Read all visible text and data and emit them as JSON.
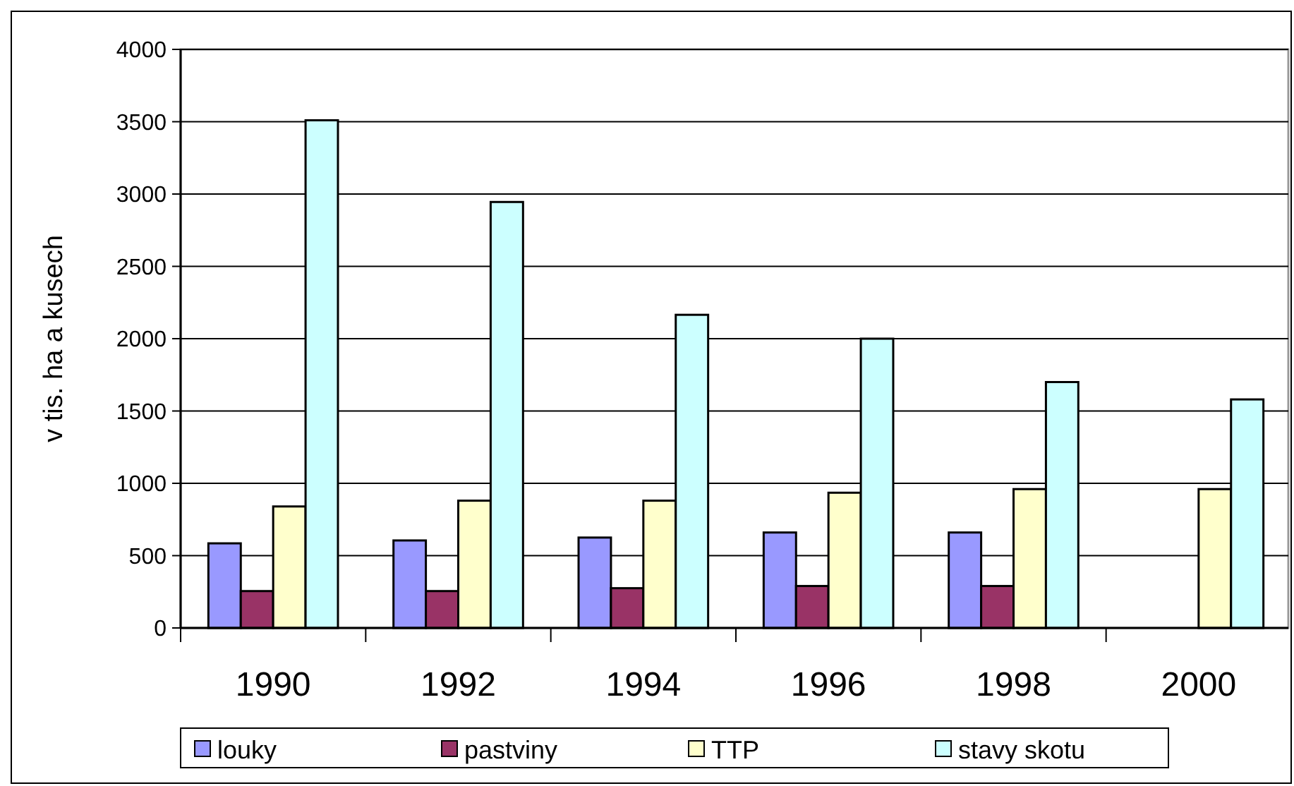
{
  "chart_data": {
    "type": "bar",
    "ylabel": "v tis. ha a kusech",
    "categories": [
      "1990",
      "1992",
      "1994",
      "1996",
      "1998",
      "2000"
    ],
    "series": [
      {
        "name": "louky",
        "color": "#9999ff",
        "values": [
          585,
          605,
          625,
          660,
          660,
          null
        ]
      },
      {
        "name": "pastviny",
        "color": "#993366",
        "values": [
          255,
          255,
          275,
          290,
          290,
          null
        ]
      },
      {
        "name": "TTP",
        "color": "#ffffcc",
        "values": [
          840,
          880,
          880,
          935,
          960,
          960
        ]
      },
      {
        "name": "stavy skotu",
        "color": "#ccffff",
        "values": [
          3510,
          2945,
          2165,
          2000,
          1700,
          1580
        ]
      }
    ],
    "ylim": [
      0,
      4000
    ],
    "yticks": [
      0,
      500,
      1000,
      1500,
      2000,
      2500,
      3000,
      3500,
      4000
    ],
    "grid": "y",
    "legend": "bottom"
  }
}
